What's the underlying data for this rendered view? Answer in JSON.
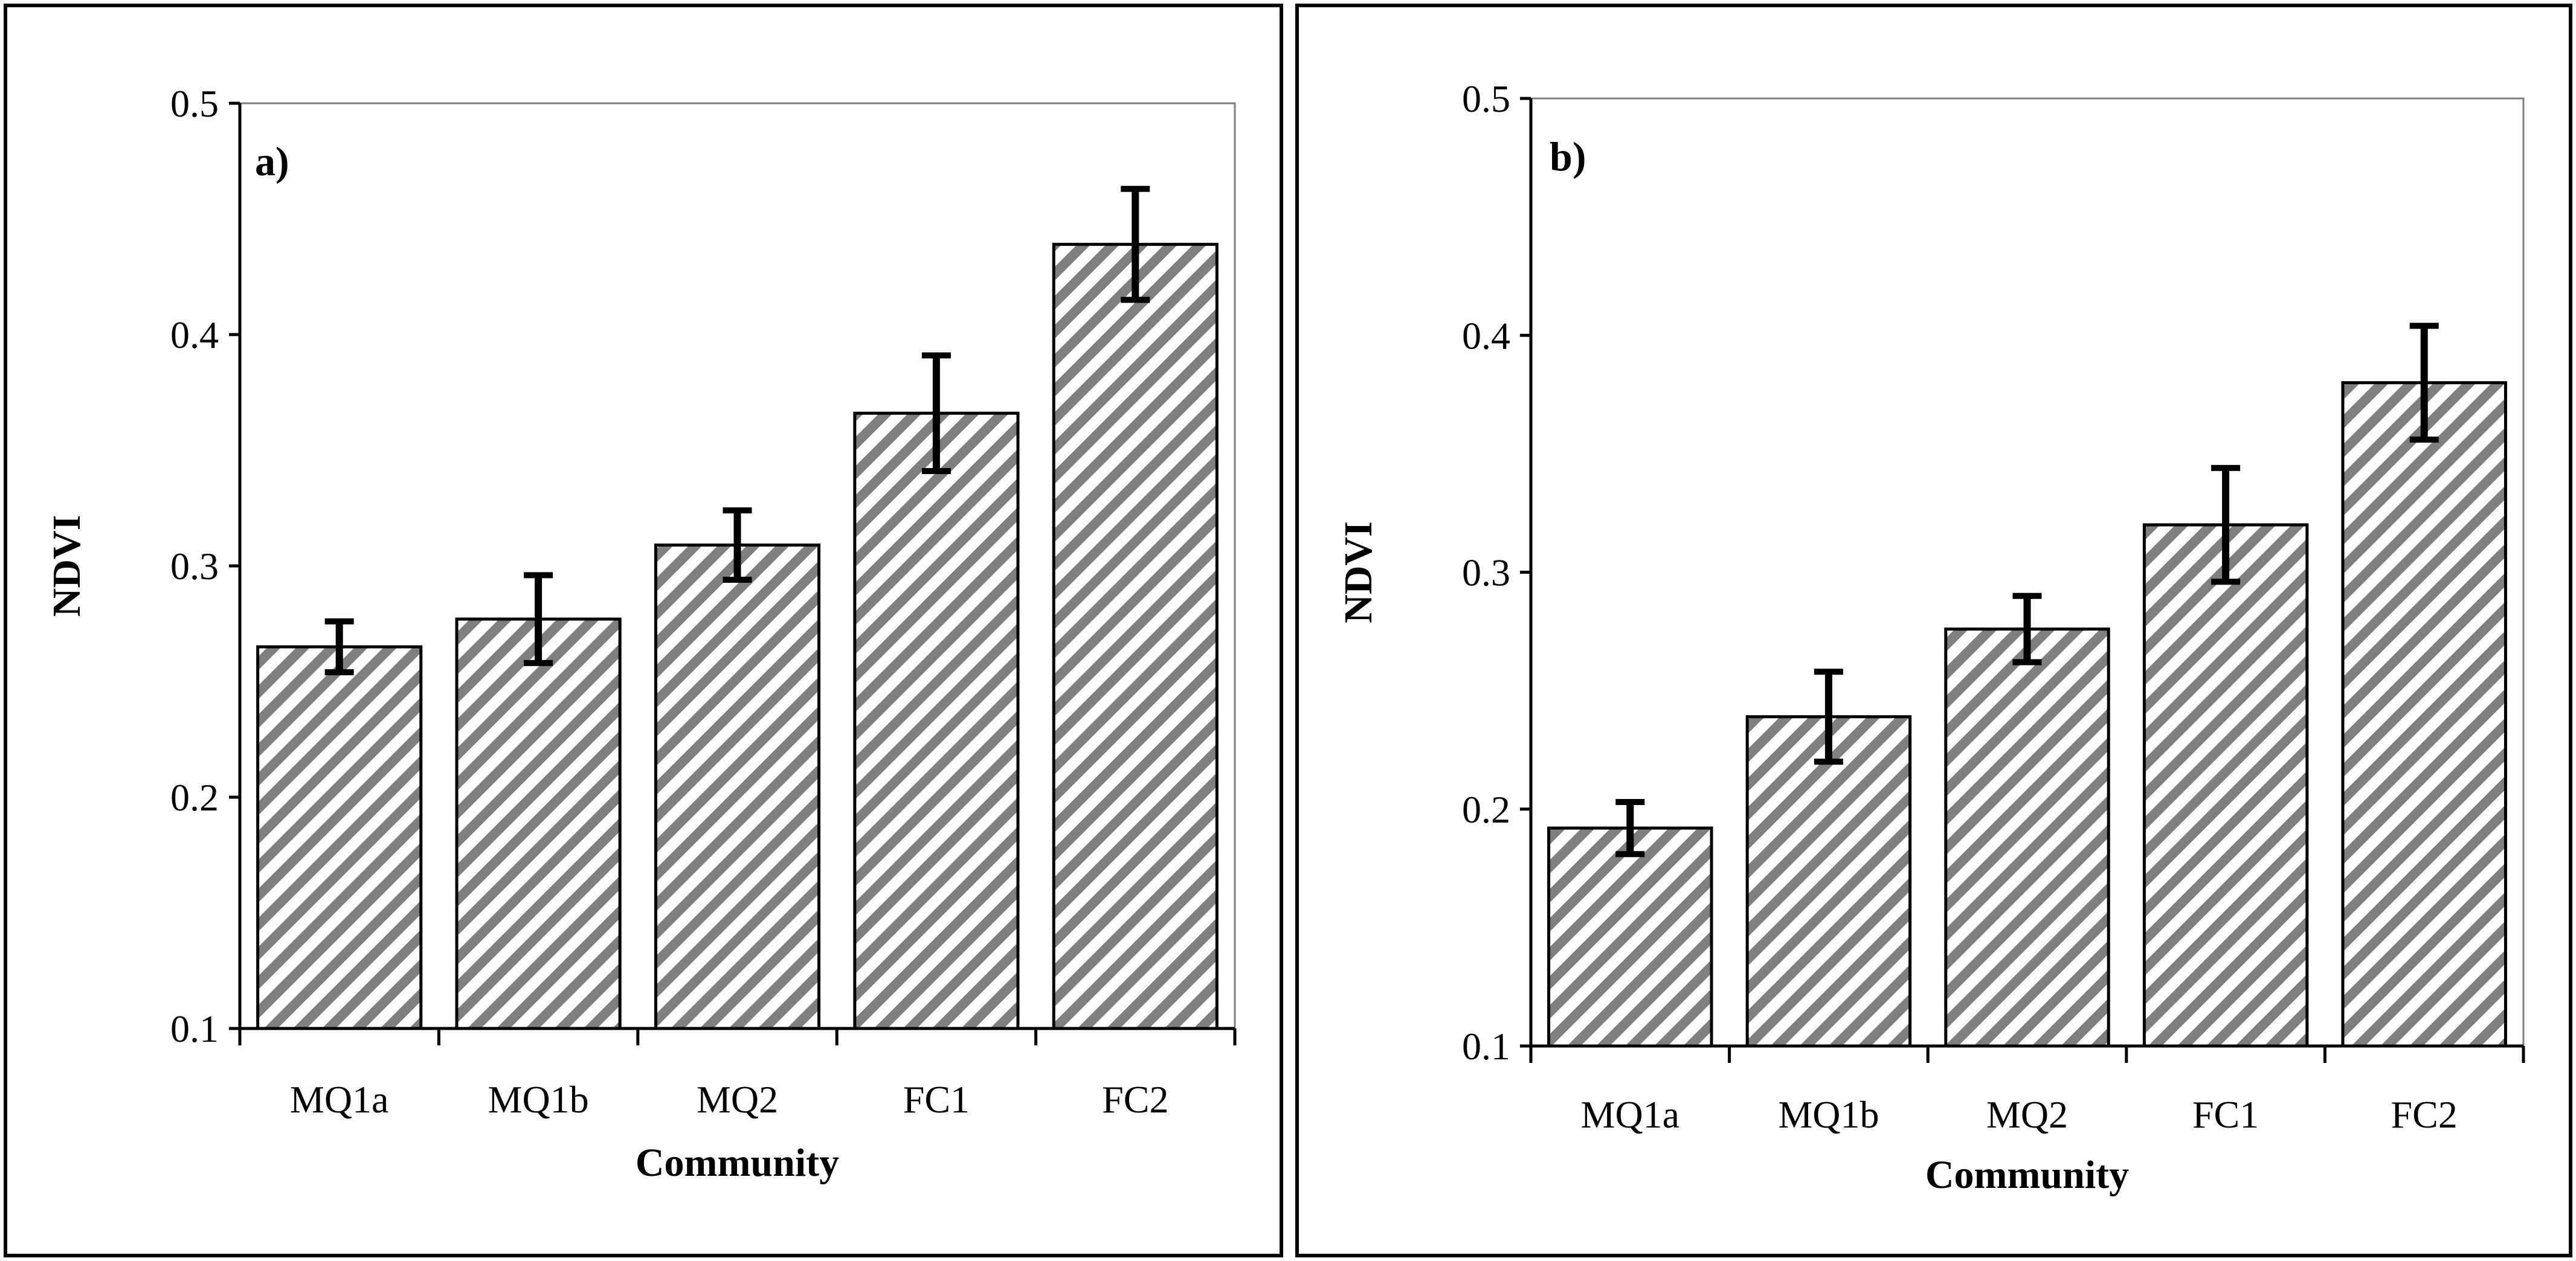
{
  "colors": {
    "bar_hatch": "#7f7f7f",
    "bar_edge": "#000000",
    "frame": "#7f7f7f",
    "text": "#000000"
  },
  "chart_data": [
    {
      "type": "bar",
      "panel_label": "a)",
      "categories": [
        "MQ1a",
        "MQ1b",
        "MQ2",
        "FC1",
        "FC2"
      ],
      "values": [
        0.265,
        0.277,
        0.309,
        0.366,
        0.439
      ],
      "errors": [
        0.011,
        0.019,
        0.015,
        0.025,
        0.024
      ],
      "xlabel": "Community",
      "ylabel": "NDVI",
      "ylim": [
        0.1,
        0.5
      ],
      "yticks": [
        "0.1",
        "0.2",
        "0.3",
        "0.4",
        "0.5"
      ],
      "grid": false
    },
    {
      "type": "bar",
      "panel_label": "b)",
      "categories": [
        "MQ1a",
        "MQ1b",
        "MQ2",
        "FC1",
        "FC2"
      ],
      "values": [
        0.192,
        0.239,
        0.276,
        0.32,
        0.38
      ],
      "errors": [
        0.011,
        0.019,
        0.014,
        0.024,
        0.024
      ],
      "xlabel": "Community",
      "ylabel": "NDVI",
      "ylim": [
        0.1,
        0.5
      ],
      "yticks": [
        "0.1",
        "0.2",
        "0.3",
        "0.4",
        "0.5"
      ],
      "grid": false
    }
  ]
}
